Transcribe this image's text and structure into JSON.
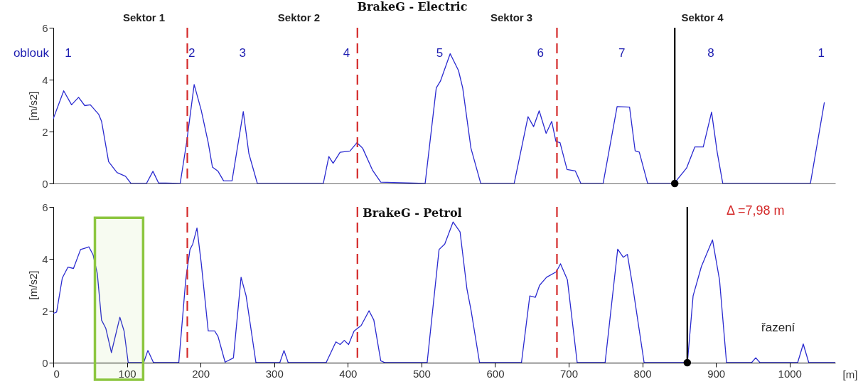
{
  "chart_data": [
    {
      "type": "line",
      "title": "BrakeG - Electric",
      "ylabel": "[m/s2]",
      "xlim": [
        0,
        1062
      ],
      "ylim": [
        0,
        6
      ],
      "yticks": [
        0,
        2,
        4,
        6
      ],
      "tick_labels": "y",
      "series": [
        {
          "type": "line",
          "color": "#2b2bd0",
          "x": [
            0,
            14.1,
            24.8,
            34.3,
            42.7,
            50.3,
            61.7,
            65.5,
            75.1,
            86.5,
            98,
            105.5,
            126.5,
            135.3,
            142.9,
            172.3,
            181,
            191.3,
            200.9,
            210.4,
            216.1,
            223.7,
            231.3,
            242.7,
            258,
            265.6,
            277.1,
            366.7,
            374.2,
            380,
            389.5,
            402.9,
            412.4,
            420.1,
            433.4,
            444.7,
            505,
            520.1,
            525.7,
            539,
            550.3,
            556,
            567.2,
            580.5,
            625.9,
            644.7,
            652.3,
            659.9,
            669.3,
            676.9,
            682.6,
            688.2,
            697.7,
            709,
            716.5,
            746.7,
            765.7,
            782.6,
            790.2,
            795.8,
            807.2,
            843.1,
            860,
            871.3,
            882.7,
            894,
            901.6,
            909.2,
            1028.2,
            1047.1
          ],
          "values": [
            2.5,
            3.57,
            3.03,
            3.32,
            3,
            3.03,
            2.66,
            2.4,
            0.84,
            0.42,
            0.28,
            0,
            0,
            0.47,
            0.02,
            0,
            1.57,
            3.81,
            2.82,
            1.57,
            0.63,
            0.47,
            0.1,
            0.1,
            2.77,
            1.15,
            0,
            0,
            1.04,
            0.78,
            1.2,
            1.25,
            1.57,
            1.36,
            0.52,
            0.05,
            0,
            3.68,
            3.94,
            5,
            4.35,
            3.68,
            1.36,
            0,
            0,
            2.57,
            2.19,
            2.8,
            1.93,
            2.39,
            1.62,
            1.57,
            0.54,
            0.48,
            0,
            0,
            2.96,
            2.94,
            1.26,
            1.21,
            0,
            0,
            0.59,
            1.41,
            1.41,
            2.75,
            1.21,
            0,
            0,
            3.11
          ]
        },
        {
          "type": "scatter",
          "color": "#000000",
          "marker": "circle",
          "x": [
            844
          ],
          "values": [
            0
          ]
        }
      ],
      "ref_lines": [
        {
          "axis": "x",
          "value": 182,
          "color": "#d42a2a",
          "line_style": "dashed"
        },
        {
          "axis": "x",
          "value": 413,
          "color": "#d42a2a",
          "line_style": "dashed"
        },
        {
          "axis": "x",
          "value": 684,
          "color": "#d42a2a",
          "line_style": "dashed"
        },
        {
          "axis": "x",
          "value": 844,
          "color": "#000000",
          "line_style": "solid"
        }
      ],
      "annotations": [
        "Sektor 1",
        "Sektor 2",
        "Sektor 3",
        "Sektor 4",
        "oblouk",
        "1",
        "2",
        "3",
        "4",
        "5",
        "6",
        "7",
        "8",
        "1"
      ]
    },
    {
      "type": "line",
      "title": "BrakeG - Petrol",
      "ylabel": "[m/s2]",
      "xlabel": "[m]",
      "xlim": [
        0,
        1062
      ],
      "ylim": [
        0,
        6
      ],
      "xticks": [
        0,
        100,
        200,
        300,
        400,
        500,
        600,
        700,
        800,
        900,
        1000
      ],
      "yticks": [
        0,
        2,
        4,
        6
      ],
      "series": [
        {
          "type": "line",
          "color": "#2b2bd0",
          "x": [
            0,
            4.5,
            12.2,
            19.8,
            27.4,
            37,
            42.7,
            48.4,
            54.1,
            59.8,
            65.5,
            71.2,
            78.9,
            90.4,
            96.1,
            101.7,
            122.7,
            128.4,
            136.1,
            170.4,
            179.9,
            185.6,
            189.4,
            195.1,
            200.9,
            210.4,
            219.2,
            223.7,
            233.3,
            244.6,
            255,
            261.8,
            275.2,
            307.6,
            313.3,
            319,
            370.5,
            383.8,
            389.5,
            395.2,
            401,
            408.5,
            418.1,
            428.8,
            435.3,
            444.7,
            450.5,
            507.7,
            523.9,
            531.6,
            542.9,
            552.4,
            561.8,
            567.4,
            578.9,
            635.8,
            647.1,
            654.7,
            660.4,
            669.9,
            683.1,
            688.8,
            698.2,
            711.5,
            749.4,
            766.5,
            774.1,
            779.7,
            787.2,
            802.4,
            861.2,
            868.9,
            880.1,
            895.3,
            904.8,
            914.3,
            948.3,
            954,
            959.7,
            1010.9,
            1018.5,
            1026,
            1062
          ],
          "values": [
            1.9,
            1.95,
            3.26,
            3.68,
            3.63,
            4.36,
            4.41,
            4.46,
            4.15,
            3.42,
            1.64,
            1.33,
            0.39,
            1.75,
            1.22,
            0,
            0,
            0.47,
            0,
            0,
            3.21,
            4.36,
            4.57,
            5.19,
            3.84,
            1.22,
            1.22,
            1.01,
            0.02,
            0.18,
            3.29,
            2.58,
            0,
            0,
            0.47,
            0,
            0,
            0.8,
            0.7,
            0.86,
            0.7,
            1.22,
            1.43,
            2,
            1.64,
            0.07,
            0,
            0,
            4.36,
            4.57,
            5.42,
            5.04,
            2.83,
            2.01,
            0,
            0,
            2.57,
            2.52,
            2.98,
            3.29,
            3.5,
            3.81,
            3.19,
            0,
            0,
            4.37,
            4.06,
            4.17,
            2.88,
            0,
            0,
            2.57,
            3.7,
            4.73,
            3.19,
            0,
            0,
            0.19,
            0,
            0,
            0.72,
            0,
            0
          ]
        },
        {
          "type": "scatter",
          "color": "#000000",
          "marker": "circle",
          "x": [
            861
          ],
          "values": [
            0
          ]
        }
      ],
      "ref_lines": [
        {
          "axis": "x",
          "value": 182,
          "color": "#d42a2a",
          "line_style": "dashed"
        },
        {
          "axis": "x",
          "value": 413,
          "color": "#d42a2a",
          "line_style": "dashed"
        },
        {
          "axis": "x",
          "value": 684,
          "color": "#d42a2a",
          "line_style": "dashed"
        },
        {
          "axis": "x",
          "value": 861,
          "color": "#000000",
          "line_style": "solid"
        }
      ],
      "bands": [
        {
          "axis": "x",
          "from": 56.5,
          "to": 122,
          "color": "#8cc63f"
        }
      ],
      "annotations": [
        "Δ =7,98 m",
        "řazení"
      ]
    }
  ]
}
